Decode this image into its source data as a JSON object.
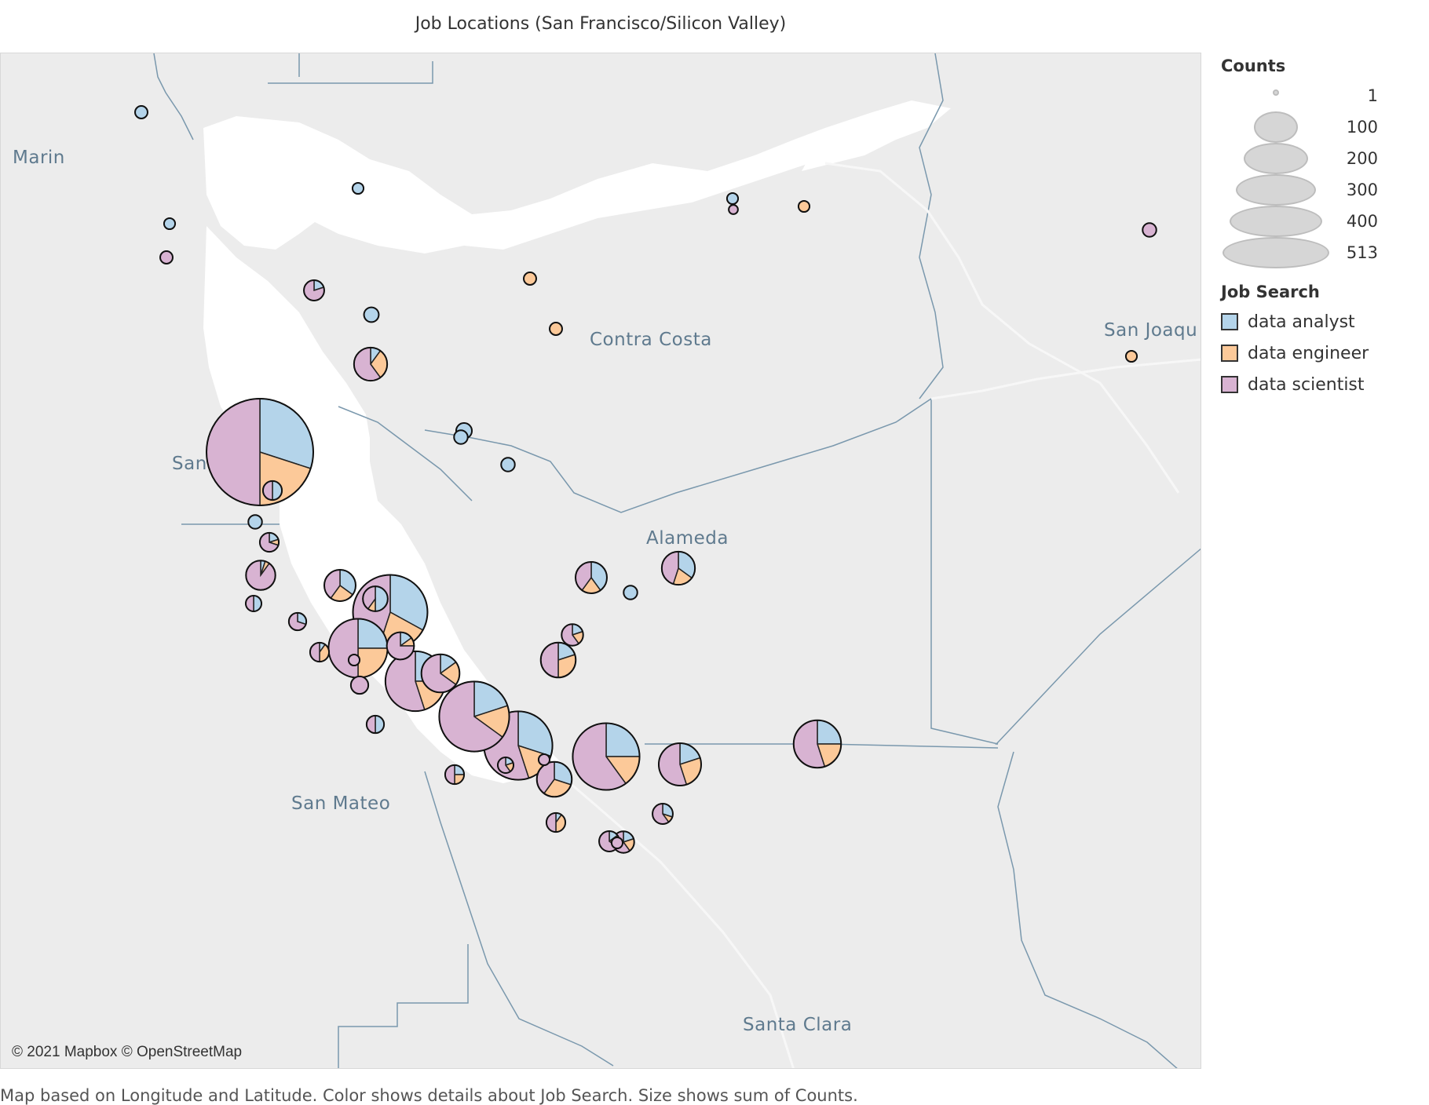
{
  "title": "Job Locations (San Francisco/Silicon Valley)",
  "caption": "Map based on Longitude and Latitude.  Color shows details about Job Search.  Size shows sum of Counts.",
  "attribution": "© 2021 Mapbox © OpenStreetMap",
  "map": {
    "region_labels": [
      "Marin",
      "Contra Costa",
      "San Joaqu",
      "San Francisco",
      "Alameda",
      "San Mateo",
      "Santa Clara"
    ]
  },
  "legend": {
    "size_title": "Counts",
    "size_values": [
      "1",
      "100",
      "200",
      "300",
      "400",
      "513"
    ],
    "color_title": "Job Search",
    "items": [
      {
        "label": "data analyst",
        "color": "#b4d4ea"
      },
      {
        "label": "data engineer",
        "color": "#fcc999"
      },
      {
        "label": "data scientist",
        "color": "#d8b3d2"
      }
    ]
  },
  "chart_data": {
    "type": "map-pie",
    "series_names": [
      "data analyst",
      "data engineer",
      "data scientist"
    ],
    "size_measure": "Counts",
    "size_range": [
      1,
      513
    ],
    "locations": [
      {
        "shares": [
          0.3,
          0.2,
          0.5
        ],
        "count": 513
      },
      {
        "shares": [
          0.33,
          0.22,
          0.45
        ],
        "count": 240
      },
      {
        "shares": [
          0.3,
          0.15,
          0.55
        ],
        "count": 200
      },
      {
        "shares": [
          0.25,
          0.15,
          0.6
        ],
        "count": 190
      },
      {
        "shares": [
          0.2,
          0.15,
          0.65
        ],
        "count": 210
      },
      {
        "shares": [
          0.25,
          0.2,
          0.55
        ],
        "count": 150
      },
      {
        "shares": [
          0.25,
          0.25,
          0.5
        ],
        "count": 145
      },
      {
        "shares": [
          0.25,
          0.2,
          0.55
        ],
        "count": 90
      },
      {
        "shares": [
          0.2,
          0.25,
          0.55
        ],
        "count": 70
      },
      {
        "shares": [
          0.15,
          0.2,
          0.65
        ],
        "count": 55
      },
      {
        "shares": [
          0.2,
          0.3,
          0.5
        ],
        "count": 45
      },
      {
        "shares": [
          0.3,
          0.3,
          0.4
        ],
        "count": 45
      },
      {
        "shares": [
          0.35,
          0.2,
          0.45
        ],
        "count": 40
      },
      {
        "shares": [
          0.1,
          0.3,
          0.6
        ],
        "count": 40
      },
      {
        "shares": [
          0.4,
          0.2,
          0.4
        ],
        "count": 35
      },
      {
        "shares": [
          0.35,
          0.25,
          0.4
        ],
        "count": 35
      },
      {
        "shares": [
          0.05,
          0.05,
          0.9
        ],
        "count": 30
      },
      {
        "shares": [
          0.15,
          0.1,
          0.75
        ],
        "count": 25
      },
      {
        "shares": [
          0.5,
          0.1,
          0.4
        ],
        "count": 20
      },
      {
        "shares": [
          0.2,
          0.2,
          0.6
        ],
        "count": 14
      },
      {
        "shares": [
          0.3,
          0.1,
          0.6
        ],
        "count": 12
      },
      {
        "shares": [
          0.2,
          0.2,
          0.6
        ],
        "count": 14
      },
      {
        "shares": [
          0.15,
          0.2,
          0.65
        ],
        "count": 12
      },
      {
        "shares": [
          0.1,
          0.4,
          0.5
        ],
        "count": 10
      },
      {
        "shares": [
          0.1,
          0.4,
          0.5
        ],
        "count": 10
      },
      {
        "shares": [
          0.3,
          0.0,
          0.7
        ],
        "count": 8
      },
      {
        "shares": [
          0.2,
          0.1,
          0.7
        ],
        "count": 10
      },
      {
        "shares": [
          0.25,
          0.25,
          0.5
        ],
        "count": 10
      },
      {
        "shares": [
          0.5,
          0.0,
          0.5
        ],
        "count": 8
      },
      {
        "shares": [
          0.0,
          0.0,
          1.0
        ],
        "count": 8
      },
      {
        "shares": [
          0.2,
          0.0,
          0.8
        ],
        "count": 12
      },
      {
        "shares": [
          0.5,
          0.0,
          0.5
        ],
        "count": 10
      },
      {
        "shares": [
          0.5,
          0.0,
          0.5
        ],
        "count": 6
      },
      {
        "shares": [
          0.2,
          0.2,
          0.6
        ],
        "count": 6
      },
      {
        "shares": [
          1,
          0,
          0
        ],
        "count": 6
      },
      {
        "shares": [
          1,
          0,
          0
        ],
        "count": 5
      },
      {
        "shares": [
          1,
          0,
          0
        ],
        "count": 4
      },
      {
        "shares": [
          1,
          0,
          0
        ],
        "count": 4
      },
      {
        "shares": [
          1,
          0,
          0
        ],
        "count": 4
      },
      {
        "shares": [
          1,
          0,
          0
        ],
        "count": 4
      },
      {
        "shares": [
          1,
          0,
          0
        ],
        "count": 3
      },
      {
        "shares": [
          1,
          0,
          0
        ],
        "count": 2
      },
      {
        "shares": [
          1,
          0,
          0
        ],
        "count": 2
      },
      {
        "shares": [
          1,
          0,
          0
        ],
        "count": 2
      },
      {
        "shares": [
          0,
          1,
          0
        ],
        "count": 3
      },
      {
        "shares": [
          0,
          1,
          0
        ],
        "count": 3
      },
      {
        "shares": [
          0,
          1,
          0
        ],
        "count": 2
      },
      {
        "shares": [
          0,
          1,
          0
        ],
        "count": 2
      },
      {
        "shares": [
          0,
          0,
          1
        ],
        "count": 4
      },
      {
        "shares": [
          0,
          0,
          1
        ],
        "count": 3
      },
      {
        "shares": [
          0,
          0,
          1
        ],
        "count": 2
      },
      {
        "shares": [
          0,
          0,
          1
        ],
        "count": 2
      },
      {
        "shares": [
          0,
          0,
          1
        ],
        "count": 2
      },
      {
        "shares": [
          0,
          0,
          1
        ],
        "count": 1
      }
    ]
  }
}
